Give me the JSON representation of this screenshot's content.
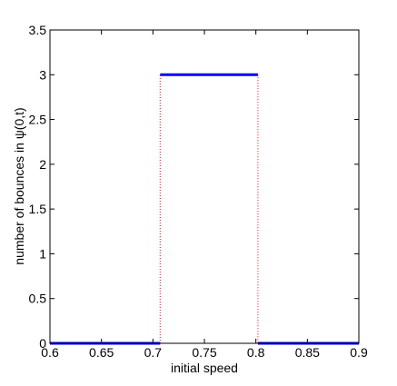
{
  "chart_data": {
    "type": "line",
    "xlabel": "initial speed",
    "ylabel": "number of bounces in ψ(0,t)",
    "x": [
      0.6,
      0.707,
      0.707,
      0.707,
      0.802,
      0.802,
      0.802,
      0.9
    ],
    "series": [
      {
        "color": "#0000ff",
        "style": "solid",
        "values": [
          0,
          0,
          null,
          3,
          3,
          null,
          0,
          0
        ]
      },
      {
        "color": "#ff0000",
        "style": "dotted",
        "values": [
          null,
          0,
          3,
          null,
          3,
          0,
          null,
          null
        ]
      }
    ],
    "xlim": [
      0.6,
      0.9
    ],
    "xticks": [
      0.6,
      0.65,
      0.7,
      0.75,
      0.8,
      0.85,
      0.9
    ],
    "ylim": [
      0,
      3.5
    ],
    "yticks": [
      0,
      0.5,
      1,
      1.5,
      2,
      2.5,
      3,
      3.5
    ]
  }
}
